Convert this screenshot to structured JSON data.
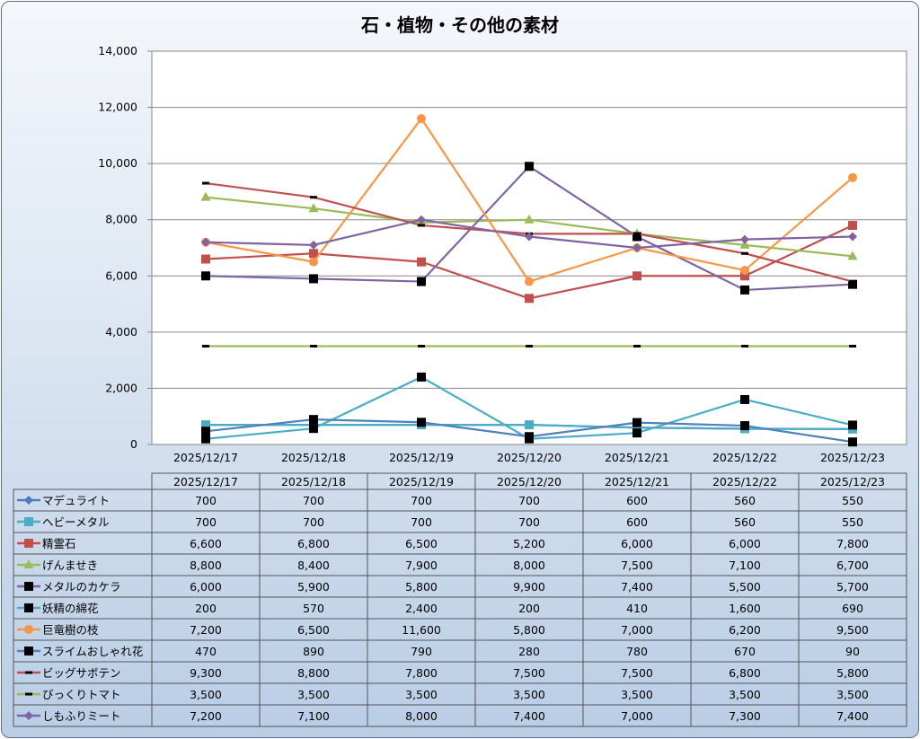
{
  "chart_data": {
    "type": "line",
    "title": "石・植物・その他の素材",
    "categories": [
      "2025/12/17",
      "2025/12/18",
      "2025/12/19",
      "2025/12/20",
      "2025/12/21",
      "2025/12/22",
      "2025/12/23"
    ],
    "ylim": [
      0,
      14000
    ],
    "yticks": [
      "0",
      "2,000",
      "4,000",
      "6,000",
      "8,000",
      "10,000",
      "12,000",
      "14,000"
    ],
    "grid": true,
    "legend": "data-table",
    "series": [
      {
        "name": "マデュライト",
        "values": [
          700,
          700,
          700,
          700,
          600,
          560,
          550
        ],
        "labels": [
          "700",
          "700",
          "700",
          "700",
          "600",
          "560",
          "550"
        ],
        "color": "#4a7ebb",
        "marker": "diamond",
        "markerColor": "#4a7ebb"
      },
      {
        "name": "ヘビーメタル",
        "values": [
          700,
          700,
          700,
          700,
          600,
          560,
          550
        ],
        "labels": [
          "700",
          "700",
          "700",
          "700",
          "600",
          "560",
          "550"
        ],
        "color": "#4bacc6",
        "marker": "square",
        "markerColor": "#4bacc6"
      },
      {
        "name": "精霊石",
        "values": [
          6600,
          6800,
          6500,
          5200,
          6000,
          6000,
          7800
        ],
        "labels": [
          "6,600",
          "6,800",
          "6,500",
          "5,200",
          "6,000",
          "6,000",
          "7,800"
        ],
        "color": "#c0504d",
        "marker": "square",
        "markerColor": "#c0504d"
      },
      {
        "name": "げんませき",
        "values": [
          8800,
          8400,
          7900,
          8000,
          7500,
          7100,
          6700
        ],
        "labels": [
          "8,800",
          "8,400",
          "7,900",
          "8,000",
          "7,500",
          "7,100",
          "6,700"
        ],
        "color": "#9bbb59",
        "marker": "triangle",
        "markerColor": "#9bbb59"
      },
      {
        "name": "メタルのカケラ",
        "values": [
          6000,
          5900,
          5800,
          9900,
          7400,
          5500,
          5700
        ],
        "labels": [
          "6,000",
          "5,900",
          "5,800",
          "9,900",
          "7,400",
          "5,500",
          "5,700"
        ],
        "color": "#8064a2",
        "marker": "square",
        "markerColor": "#000000"
      },
      {
        "name": "妖精の綿花",
        "values": [
          200,
          570,
          2400,
          200,
          410,
          1600,
          690
        ],
        "labels": [
          "200",
          "570",
          "2,400",
          "200",
          "410",
          "1,600",
          "690"
        ],
        "color": "#4bacc6",
        "marker": "square",
        "markerColor": "#000000"
      },
      {
        "name": "巨竜樹の枝",
        "values": [
          7200,
          6500,
          11600,
          5800,
          7000,
          6200,
          9500
        ],
        "labels": [
          "7,200",
          "6,500",
          "11,600",
          "5,800",
          "7,000",
          "6,200",
          "9,500"
        ],
        "color": "#f79646",
        "marker": "circle",
        "markerColor": "#f79646"
      },
      {
        "name": "スライムおしゃれ花",
        "values": [
          470,
          890,
          790,
          280,
          780,
          670,
          90
        ],
        "labels": [
          "470",
          "890",
          "790",
          "280",
          "780",
          "670",
          "90"
        ],
        "color": "#4f81bd",
        "marker": "square",
        "markerColor": "#000000"
      },
      {
        "name": "ビッグサボテン",
        "values": [
          9300,
          8800,
          7800,
          7500,
          7500,
          6800,
          5800
        ],
        "labels": [
          "9,300",
          "8,800",
          "7,800",
          "7,500",
          "7,500",
          "6,800",
          "5,800"
        ],
        "color": "#c0504d",
        "marker": "dash",
        "markerColor": "#000000"
      },
      {
        "name": "びっくりトマト",
        "values": [
          3500,
          3500,
          3500,
          3500,
          3500,
          3500,
          3500
        ],
        "labels": [
          "3,500",
          "3,500",
          "3,500",
          "3,500",
          "3,500",
          "3,500",
          "3,500"
        ],
        "color": "#9bbb59",
        "marker": "dash",
        "markerColor": "#000000"
      },
      {
        "name": "しもふりミート",
        "values": [
          7200,
          7100,
          8000,
          7400,
          7000,
          7300,
          7400
        ],
        "labels": [
          "7,200",
          "7,100",
          "8,000",
          "7,400",
          "7,000",
          "7,300",
          "7,400"
        ],
        "color": "#8064a2",
        "marker": "diamond",
        "markerColor": "#8064a2"
      }
    ]
  }
}
